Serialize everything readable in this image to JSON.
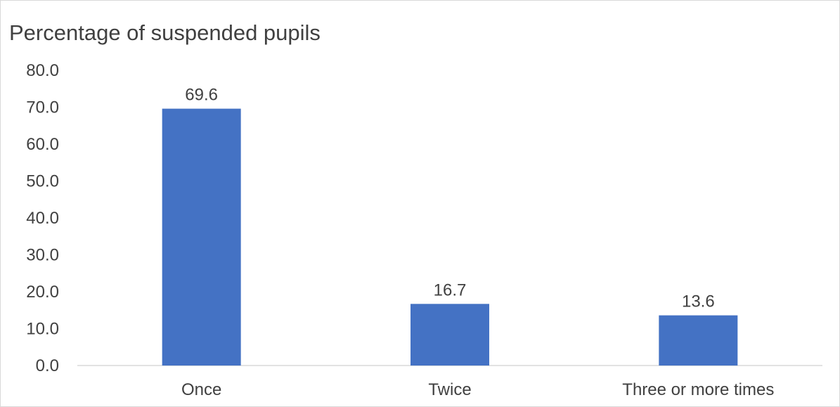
{
  "chart_data": {
    "type": "bar",
    "title": "Percentage of suspended pupils",
    "categories": [
      "Once",
      "Twice",
      "Three or more times"
    ],
    "values": [
      69.6,
      16.7,
      13.6
    ],
    "data_labels": [
      "69.6",
      "16.7",
      "13.6"
    ],
    "ylim": [
      0,
      80
    ],
    "yticks": [
      "0.0",
      "10.0",
      "20.0",
      "30.0",
      "40.0",
      "50.0",
      "60.0",
      "70.0",
      "80.0"
    ],
    "grid": false,
    "legend": "none",
    "bar_color": "#4472C4"
  }
}
